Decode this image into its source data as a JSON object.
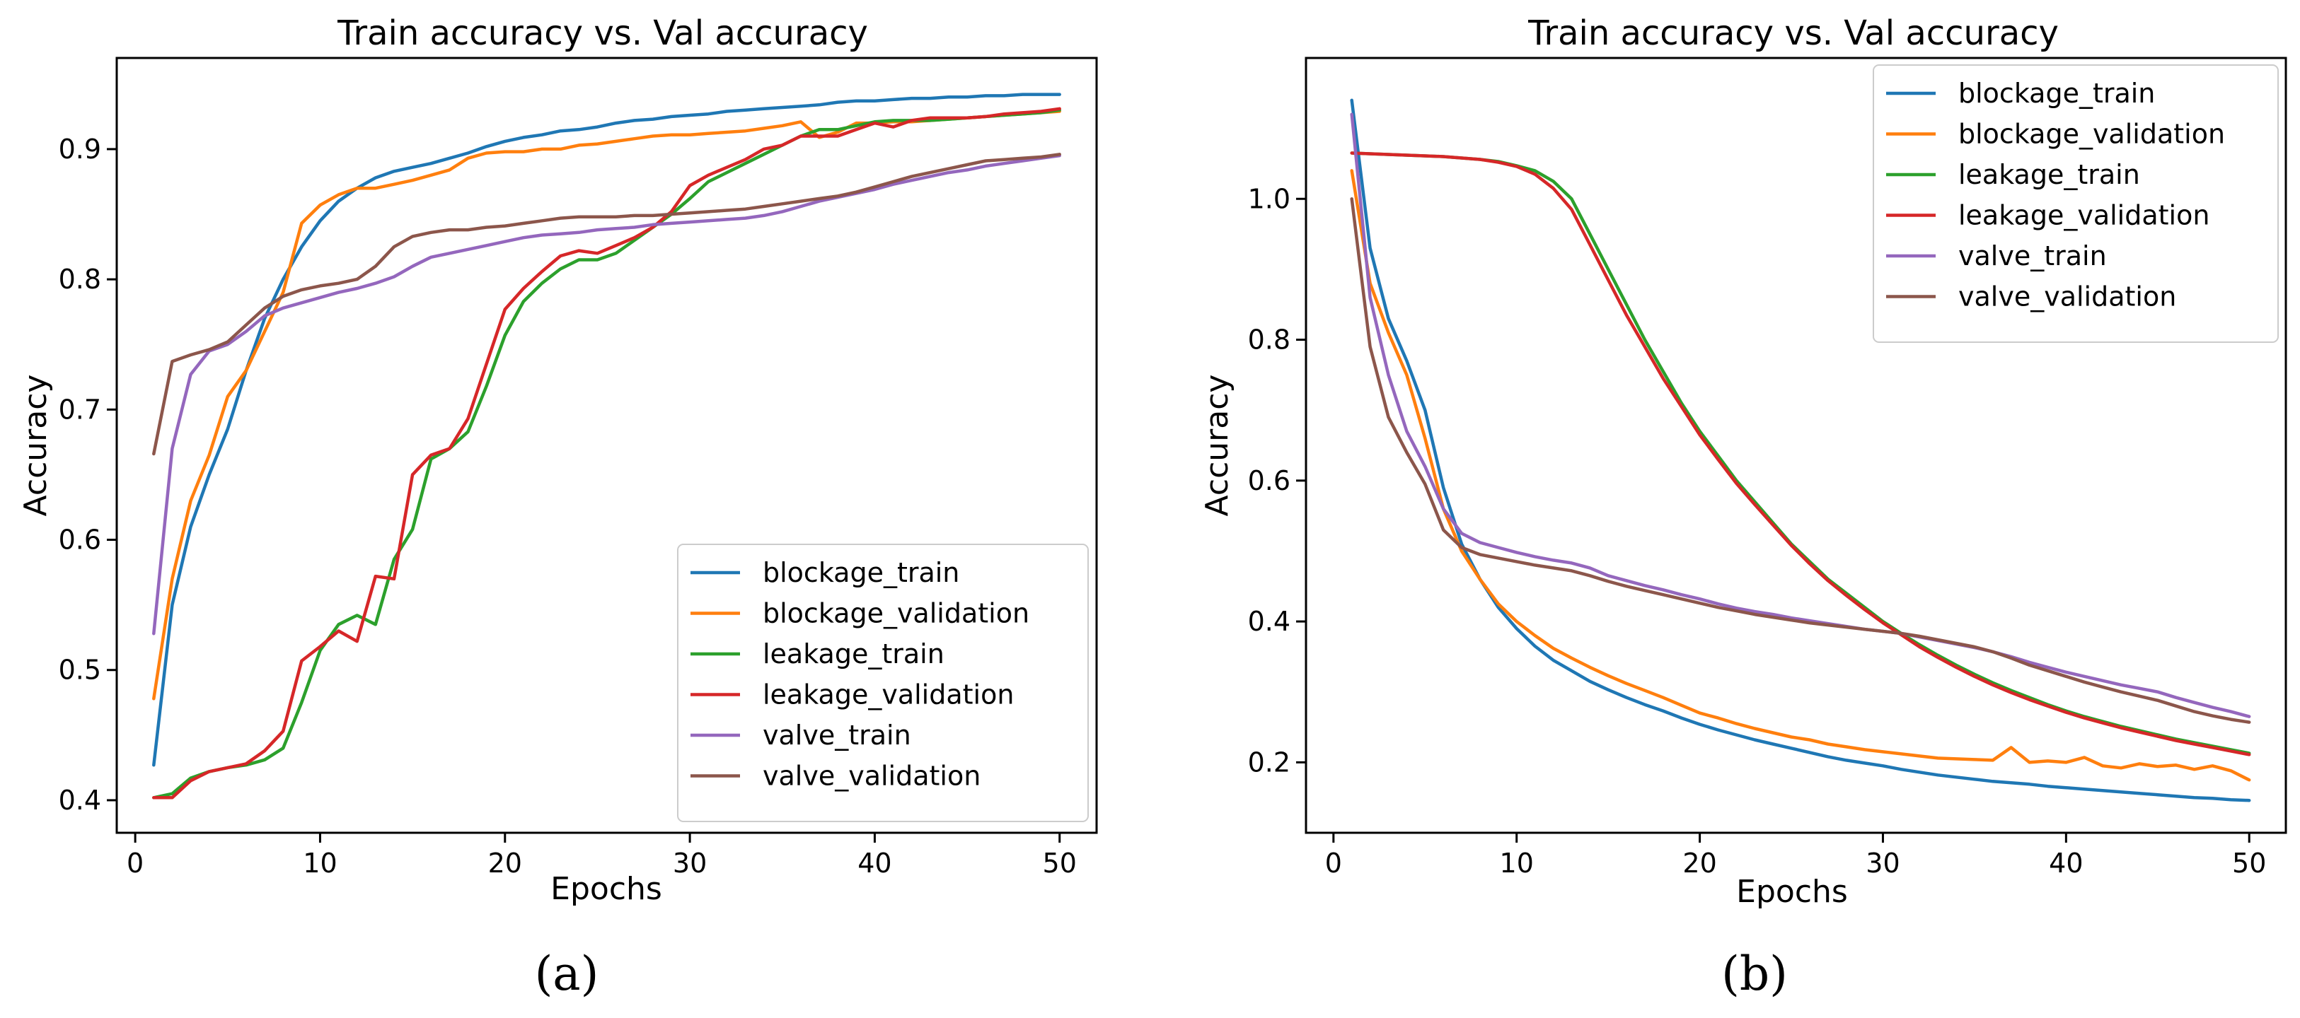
{
  "colors": {
    "blockage_train": "#1f77b4",
    "blockage_validation": "#ff7f0e",
    "leakage_train": "#2ca02c",
    "leakage_validation": "#d62728",
    "valve_train": "#9467bd",
    "valve_validation": "#8c564b"
  },
  "chart_data": [
    {
      "type": "line",
      "panel_label": "(a)",
      "title": "Train accuracy vs. Val accuracy",
      "xlabel": "Epochs",
      "ylabel": "Accuracy",
      "xlim": [
        -1,
        52
      ],
      "ylim": [
        0.375,
        0.97
      ],
      "xticks": [
        0,
        10,
        20,
        30,
        40,
        50
      ],
      "yticks": [
        0.4,
        0.5,
        0.6,
        0.7,
        0.8,
        0.9
      ],
      "ytick_labels": [
        "0.4",
        "0.5",
        "0.6",
        "0.7",
        "0.8",
        "0.9"
      ],
      "legend_position": "lower-right",
      "x": [
        1,
        2,
        3,
        4,
        5,
        6,
        7,
        8,
        9,
        10,
        11,
        12,
        13,
        14,
        15,
        16,
        17,
        18,
        19,
        20,
        21,
        22,
        23,
        24,
        25,
        26,
        27,
        28,
        29,
        30,
        31,
        32,
        33,
        34,
        35,
        36,
        37,
        38,
        39,
        40,
        41,
        42,
        43,
        44,
        45,
        46,
        47,
        48,
        49,
        50
      ],
      "series": [
        {
          "name": "blockage_train",
          "values": [
            0.427,
            0.55,
            0.61,
            0.65,
            0.685,
            0.73,
            0.77,
            0.8,
            0.825,
            0.845,
            0.86,
            0.87,
            0.878,
            0.883,
            0.886,
            0.889,
            0.893,
            0.897,
            0.902,
            0.906,
            0.909,
            0.911,
            0.914,
            0.915,
            0.917,
            0.92,
            0.922,
            0.923,
            0.925,
            0.926,
            0.927,
            0.929,
            0.93,
            0.931,
            0.932,
            0.933,
            0.934,
            0.936,
            0.937,
            0.937,
            0.938,
            0.939,
            0.939,
            0.94,
            0.94,
            0.941,
            0.941,
            0.942,
            0.942,
            0.942
          ]
        },
        {
          "name": "blockage_validation",
          "values": [
            0.478,
            0.57,
            0.63,
            0.665,
            0.71,
            0.73,
            0.76,
            0.79,
            0.843,
            0.857,
            0.865,
            0.87,
            0.87,
            0.873,
            0.876,
            0.88,
            0.884,
            0.893,
            0.897,
            0.898,
            0.898,
            0.9,
            0.9,
            0.903,
            0.904,
            0.906,
            0.908,
            0.91,
            0.911,
            0.911,
            0.912,
            0.913,
            0.914,
            0.916,
            0.918,
            0.921,
            0.909,
            0.913,
            0.92,
            0.92,
            0.921,
            0.921,
            0.922,
            0.923,
            0.924,
            0.925,
            0.926,
            0.927,
            0.928,
            0.929
          ]
        },
        {
          "name": "leakage_train",
          "values": [
            0.402,
            0.405,
            0.417,
            0.422,
            0.425,
            0.427,
            0.431,
            0.44,
            0.475,
            0.515,
            0.535,
            0.542,
            0.535,
            0.585,
            0.608,
            0.662,
            0.67,
            0.683,
            0.718,
            0.757,
            0.783,
            0.797,
            0.808,
            0.815,
            0.815,
            0.82,
            0.83,
            0.84,
            0.85,
            0.862,
            0.875,
            0.882,
            0.889,
            0.896,
            0.903,
            0.91,
            0.915,
            0.915,
            0.918,
            0.921,
            0.922,
            0.922,
            0.922,
            0.923,
            0.924,
            0.925,
            0.926,
            0.927,
            0.928,
            0.93
          ]
        },
        {
          "name": "leakage_validation",
          "values": [
            0.402,
            0.402,
            0.415,
            0.422,
            0.425,
            0.428,
            0.438,
            0.453,
            0.507,
            0.518,
            0.53,
            0.522,
            0.572,
            0.57,
            0.65,
            0.665,
            0.67,
            0.693,
            0.735,
            0.777,
            0.793,
            0.806,
            0.818,
            0.822,
            0.82,
            0.826,
            0.832,
            0.84,
            0.852,
            0.872,
            0.88,
            0.886,
            0.892,
            0.9,
            0.903,
            0.91,
            0.91,
            0.91,
            0.915,
            0.92,
            0.917,
            0.922,
            0.924,
            0.924,
            0.924,
            0.925,
            0.927,
            0.928,
            0.929,
            0.931
          ]
        },
        {
          "name": "valve_train",
          "values": [
            0.528,
            0.67,
            0.727,
            0.745,
            0.75,
            0.76,
            0.772,
            0.778,
            0.782,
            0.786,
            0.79,
            0.793,
            0.797,
            0.802,
            0.81,
            0.817,
            0.82,
            0.823,
            0.826,
            0.829,
            0.832,
            0.834,
            0.835,
            0.836,
            0.838,
            0.839,
            0.84,
            0.842,
            0.843,
            0.844,
            0.845,
            0.846,
            0.847,
            0.849,
            0.852,
            0.856,
            0.86,
            0.863,
            0.866,
            0.869,
            0.873,
            0.876,
            0.879,
            0.882,
            0.884,
            0.887,
            0.889,
            0.891,
            0.893,
            0.895
          ]
        },
        {
          "name": "valve_validation",
          "values": [
            0.666,
            0.737,
            0.742,
            0.746,
            0.752,
            0.765,
            0.778,
            0.787,
            0.792,
            0.795,
            0.797,
            0.8,
            0.81,
            0.825,
            0.833,
            0.836,
            0.838,
            0.838,
            0.84,
            0.841,
            0.843,
            0.845,
            0.847,
            0.848,
            0.848,
            0.848,
            0.849,
            0.849,
            0.85,
            0.851,
            0.852,
            0.853,
            0.854,
            0.856,
            0.858,
            0.86,
            0.862,
            0.864,
            0.867,
            0.871,
            0.875,
            0.879,
            0.882,
            0.885,
            0.888,
            0.891,
            0.892,
            0.893,
            0.894,
            0.896
          ]
        }
      ],
      "legend": [
        "blockage_train",
        "blockage_validation",
        "leakage_train",
        "leakage_validation",
        "valve_train",
        "valve_validation"
      ]
    },
    {
      "type": "line",
      "panel_label": "(b)",
      "title": "Train accuracy vs. Val accuracy",
      "xlabel": "Epochs",
      "ylabel": "Accuracy",
      "xlim": [
        -1.5,
        52
      ],
      "ylim": [
        0.1,
        1.2
      ],
      "xticks": [
        0,
        10,
        20,
        30,
        40,
        50
      ],
      "yticks": [
        0.2,
        0.4,
        0.6,
        0.8,
        1.0
      ],
      "ytick_labels": [
        "0.2",
        "0.4",
        "0.6",
        "0.8",
        "1.0"
      ],
      "legend_position": "upper-right",
      "x": [
        1,
        2,
        3,
        4,
        5,
        6,
        7,
        8,
        9,
        10,
        11,
        12,
        13,
        14,
        15,
        16,
        17,
        18,
        19,
        20,
        21,
        22,
        23,
        24,
        25,
        26,
        27,
        28,
        29,
        30,
        31,
        32,
        33,
        34,
        35,
        36,
        37,
        38,
        39,
        40,
        41,
        42,
        43,
        44,
        45,
        46,
        47,
        48,
        49,
        50
      ],
      "series": [
        {
          "name": "blockage_train",
          "values": [
            1.14,
            0.93,
            0.83,
            0.77,
            0.7,
            0.59,
            0.51,
            0.46,
            0.42,
            0.39,
            0.365,
            0.345,
            0.33,
            0.315,
            0.303,
            0.292,
            0.282,
            0.273,
            0.263,
            0.254,
            0.246,
            0.239,
            0.232,
            0.226,
            0.22,
            0.214,
            0.208,
            0.203,
            0.199,
            0.195,
            0.19,
            0.186,
            0.182,
            0.179,
            0.176,
            0.173,
            0.171,
            0.169,
            0.166,
            0.164,
            0.162,
            0.16,
            0.158,
            0.156,
            0.154,
            0.152,
            0.15,
            0.149,
            0.147,
            0.146
          ]
        },
        {
          "name": "blockage_validation",
          "values": [
            1.04,
            0.88,
            0.81,
            0.75,
            0.66,
            0.56,
            0.5,
            0.46,
            0.425,
            0.4,
            0.38,
            0.362,
            0.348,
            0.335,
            0.323,
            0.312,
            0.302,
            0.292,
            0.281,
            0.27,
            0.263,
            0.255,
            0.248,
            0.242,
            0.236,
            0.232,
            0.226,
            0.222,
            0.218,
            0.215,
            0.212,
            0.209,
            0.206,
            0.205,
            0.204,
            0.203,
            0.221,
            0.2,
            0.202,
            0.2,
            0.207,
            0.195,
            0.192,
            0.198,
            0.194,
            0.196,
            0.19,
            0.195,
            0.188,
            0.175
          ]
        },
        {
          "name": "leakage_train",
          "values": [
            1.065,
            1.064,
            1.063,
            1.062,
            1.061,
            1.06,
            1.058,
            1.056,
            1.053,
            1.047,
            1.04,
            1.025,
            1.0,
            0.95,
            0.9,
            0.85,
            0.8,
            0.755,
            0.71,
            0.67,
            0.635,
            0.6,
            0.57,
            0.54,
            0.51,
            0.485,
            0.46,
            0.44,
            0.42,
            0.4,
            0.383,
            0.367,
            0.352,
            0.338,
            0.325,
            0.313,
            0.302,
            0.292,
            0.282,
            0.273,
            0.265,
            0.258,
            0.251,
            0.245,
            0.239,
            0.233,
            0.228,
            0.223,
            0.218,
            0.213
          ]
        },
        {
          "name": "leakage_validation",
          "values": [
            1.065,
            1.064,
            1.063,
            1.062,
            1.061,
            1.06,
            1.058,
            1.056,
            1.052,
            1.046,
            1.035,
            1.015,
            0.985,
            0.935,
            0.885,
            0.835,
            0.79,
            0.745,
            0.705,
            0.665,
            0.63,
            0.596,
            0.566,
            0.537,
            0.508,
            0.482,
            0.458,
            0.437,
            0.417,
            0.398,
            0.381,
            0.364,
            0.349,
            0.335,
            0.322,
            0.31,
            0.299,
            0.289,
            0.28,
            0.271,
            0.263,
            0.256,
            0.249,
            0.243,
            0.237,
            0.231,
            0.226,
            0.221,
            0.216,
            0.211
          ]
        },
        {
          "name": "valve_train",
          "values": [
            1.12,
            0.86,
            0.75,
            0.67,
            0.62,
            0.56,
            0.525,
            0.512,
            0.505,
            0.498,
            0.492,
            0.487,
            0.483,
            0.476,
            0.465,
            0.458,
            0.451,
            0.445,
            0.438,
            0.432,
            0.425,
            0.419,
            0.414,
            0.41,
            0.405,
            0.401,
            0.397,
            0.393,
            0.389,
            0.386,
            0.383,
            0.378,
            0.373,
            0.368,
            0.363,
            0.357,
            0.35,
            0.342,
            0.335,
            0.328,
            0.322,
            0.316,
            0.31,
            0.305,
            0.3,
            0.292,
            0.285,
            0.278,
            0.272,
            0.265
          ]
        },
        {
          "name": "valve_validation",
          "values": [
            1.0,
            0.79,
            0.69,
            0.64,
            0.595,
            0.53,
            0.505,
            0.495,
            0.49,
            0.485,
            0.48,
            0.476,
            0.472,
            0.465,
            0.457,
            0.45,
            0.444,
            0.438,
            0.432,
            0.426,
            0.42,
            0.415,
            0.41,
            0.406,
            0.402,
            0.398,
            0.395,
            0.392,
            0.389,
            0.386,
            0.383,
            0.379,
            0.374,
            0.369,
            0.364,
            0.357,
            0.348,
            0.338,
            0.33,
            0.322,
            0.314,
            0.307,
            0.3,
            0.294,
            0.288,
            0.28,
            0.272,
            0.266,
            0.261,
            0.257
          ]
        }
      ],
      "legend": [
        "blockage_train",
        "blockage_validation",
        "leakage_train",
        "leakage_validation",
        "valve_train",
        "valve_validation"
      ]
    }
  ]
}
